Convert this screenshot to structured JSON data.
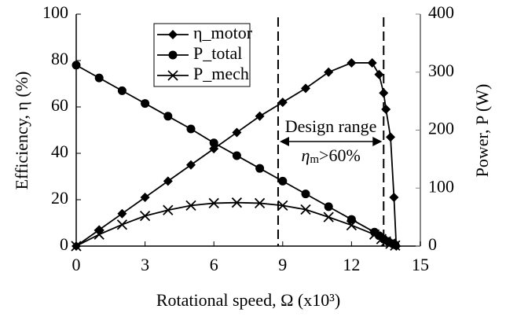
{
  "chart_data": {
    "type": "line",
    "xlabel": "Rotational speed, Ω (x10³)",
    "ylabel": "Efficiency, η (%)",
    "y2label": "Power, P (W)",
    "xlim": [
      0,
      15
    ],
    "xticks": [
      0,
      3,
      6,
      9,
      12,
      15
    ],
    "ylim": [
      0,
      100
    ],
    "yticks": [
      0,
      20,
      40,
      60,
      80,
      100
    ],
    "y2lim": [
      0,
      400
    ],
    "y2ticks": [
      0,
      100,
      200,
      300,
      400
    ],
    "legend": "upper center",
    "vlines": [
      8.8,
      13.4
    ],
    "annotation": {
      "title": "Design range",
      "symbol": "η",
      "subscript": "m",
      "rest": ">60%"
    },
    "series": [
      {
        "name": "η_motor",
        "color": "#000000",
        "marker": "diamond",
        "axis": "y",
        "x": [
          0,
          1,
          2,
          3,
          4,
          5,
          6,
          7,
          8,
          9,
          10,
          11,
          12,
          12.9,
          13.2,
          13.4,
          13.5,
          13.7,
          13.85,
          13.95
        ],
        "values": [
          0,
          7,
          14,
          21,
          28,
          35,
          42,
          49,
          56,
          62,
          68,
          75,
          79,
          79,
          74,
          66,
          59,
          47,
          21,
          0
        ]
      },
      {
        "name": "P_total",
        "color": "#000000",
        "marker": "circle",
        "axis": "y2",
        "x": [
          0,
          1,
          2,
          3,
          4,
          5,
          6,
          7,
          8,
          9,
          10,
          11,
          12,
          13,
          13.2,
          13.4,
          13.6,
          13.8,
          13.9
        ],
        "values": [
          312,
          290,
          268,
          246,
          224,
          202,
          178,
          156,
          134,
          112,
          90,
          68,
          46,
          24,
          18,
          12,
          8,
          4,
          2
        ]
      },
      {
        "name": "P_mech",
        "color": "#000000",
        "marker": "x",
        "axis": "y2",
        "x": [
          0,
          1,
          2,
          3,
          4,
          5,
          6,
          7,
          8,
          9,
          10,
          11,
          12,
          13,
          13.3,
          13.5,
          13.7,
          13.9
        ],
        "values": [
          0,
          20,
          37,
          52,
          62,
          70,
          74,
          75,
          74,
          70,
          63,
          50,
          36,
          20,
          12,
          8,
          4,
          1
        ]
      }
    ]
  }
}
